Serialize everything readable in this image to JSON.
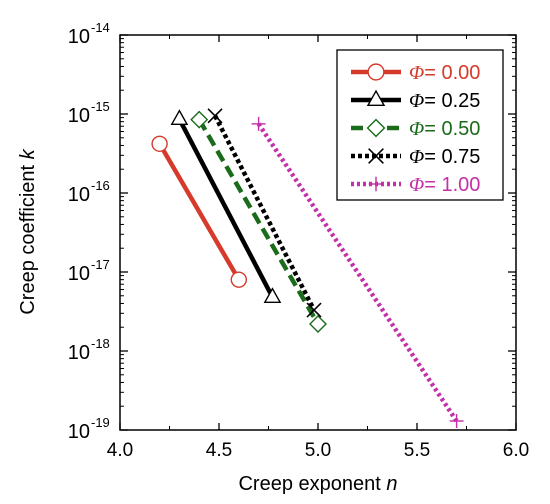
{
  "chart_data": {
    "type": "line",
    "title": "",
    "xlabel": {
      "text": "Creep exponent ",
      "var": "n"
    },
    "ylabel": {
      "text": "Creep coefficient ",
      "var": "k"
    },
    "xlim": [
      4.0,
      6.0
    ],
    "ylim_log10": [
      -19,
      -14
    ],
    "yscale": "log",
    "grid": false,
    "legend_position": "top-right",
    "x_ticks": [
      "4.0",
      "4.5",
      "5.0",
      "5.5",
      "6.0"
    ],
    "y_ticks": [
      {
        "base": "10",
        "exp": "-19"
      },
      {
        "base": "10",
        "exp": "-18"
      },
      {
        "base": "10",
        "exp": "-17"
      },
      {
        "base": "10",
        "exp": "-16"
      },
      {
        "base": "10",
        "exp": "-15"
      },
      {
        "base": "10",
        "exp": "-14"
      }
    ],
    "series": [
      {
        "name": "0.00",
        "symbol": "Φ",
        "color": "#d63a2a",
        "dash": "",
        "marker": "circle",
        "points": [
          [
            4.2,
            4.2e-16
          ],
          [
            4.6,
            8e-18
          ]
        ]
      },
      {
        "name": "0.25",
        "symbol": "Φ",
        "color": "#000000",
        "dash": "",
        "marker": "triangle",
        "points": [
          [
            4.3,
            8.6e-16
          ],
          [
            4.77,
            4.8e-18
          ]
        ]
      },
      {
        "name": "0.50",
        "symbol": "Φ",
        "color": "#1a6b1a",
        "dash": "12 6",
        "marker": "diamond",
        "points": [
          [
            4.4,
            8.5e-16
          ],
          [
            5.0,
            2.2e-18
          ]
        ]
      },
      {
        "name": "0.75",
        "symbol": "Φ",
        "color": "#000000",
        "dash": "4 3",
        "marker": "x",
        "points": [
          [
            4.48,
            9.5e-16
          ],
          [
            4.98,
            3.3e-18
          ]
        ]
      },
      {
        "name": "1.00",
        "symbol": "Φ",
        "color": "#c330a8",
        "dash": "3 3",
        "marker": "plus",
        "points": [
          [
            4.7,
            7.5e-16
          ],
          [
            5.7,
            1.3e-19
          ]
        ]
      }
    ]
  }
}
